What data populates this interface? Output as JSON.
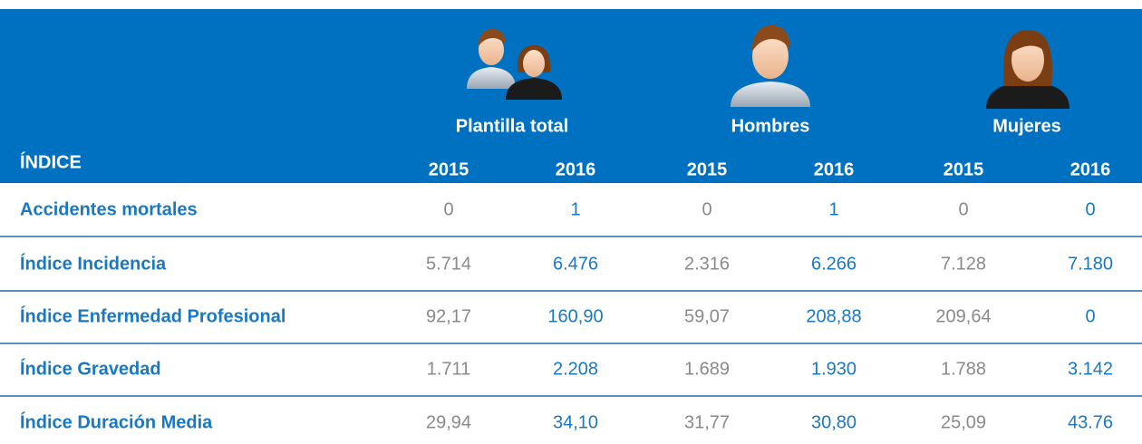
{
  "header": {
    "index_label": "ÍNDICE",
    "groups": [
      {
        "label": "Plantilla total",
        "years": [
          "2015",
          "2016"
        ]
      },
      {
        "label": "Hombres",
        "years": [
          "2015",
          "2016"
        ]
      },
      {
        "label": "Mujeres",
        "years": [
          "2015",
          "2016"
        ]
      }
    ]
  },
  "table": {
    "rows": [
      {
        "label": "Accidentes mortales",
        "values": [
          "0",
          "1",
          "0",
          "1",
          "0",
          "0"
        ]
      },
      {
        "label": "Índice Incidencia",
        "values": [
          "5.714",
          "6.476",
          "2.316",
          "6.266",
          "7.128",
          "7.180"
        ]
      },
      {
        "label": "Índice Enfermedad Profesional",
        "values": [
          "92,17",
          "160,90",
          "59,07",
          "208,88",
          "209,64",
          "0"
        ]
      },
      {
        "label": "Índice Gravedad",
        "values": [
          "1.711",
          "2.208",
          "1.689",
          "1.930",
          "1.788",
          "3.142"
        ]
      },
      {
        "label": "Índice Duración Media",
        "values": [
          "29,94",
          "34,10",
          "31,77",
          "30,80",
          "25,09",
          "43.76"
        ]
      }
    ]
  }
}
